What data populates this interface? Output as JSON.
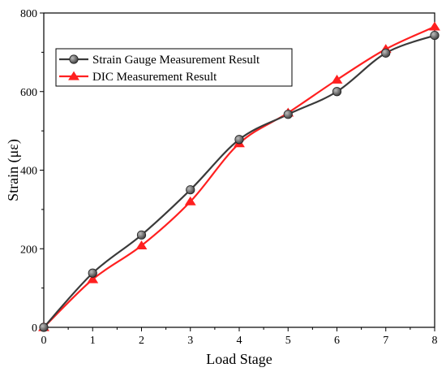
{
  "chart_data": {
    "type": "line",
    "xlabel": "Load Stage",
    "ylabel": "Strain (με)",
    "xlim": [
      0,
      8
    ],
    "ylim": [
      0,
      800
    ],
    "x_ticks": [
      0,
      1,
      2,
      3,
      4,
      5,
      6,
      7,
      8
    ],
    "y_ticks": [
      0,
      200,
      400,
      600,
      800
    ],
    "x_tick_labels": [
      "0",
      "1",
      "2",
      "3",
      "4",
      "5",
      "6",
      "7",
      "8"
    ],
    "y_tick_labels": [
      "0",
      "200",
      "400",
      "600",
      "800"
    ],
    "grid": false,
    "legend_position": "top-left",
    "x": [
      0,
      1,
      2,
      3,
      4,
      5,
      6,
      7,
      8
    ],
    "series": [
      {
        "name": "Strain Gauge Measurement Result",
        "values": [
          0,
          138,
          235,
          350,
          478,
          542,
          600,
          698,
          743
        ],
        "color": "#3a3a3a",
        "marker": "circle"
      },
      {
        "name": "DIC Measurement Result",
        "values": [
          0,
          122,
          208,
          320,
          468,
          546,
          630,
          708,
          765
        ],
        "color": "#ff2020",
        "marker": "triangle"
      }
    ]
  }
}
